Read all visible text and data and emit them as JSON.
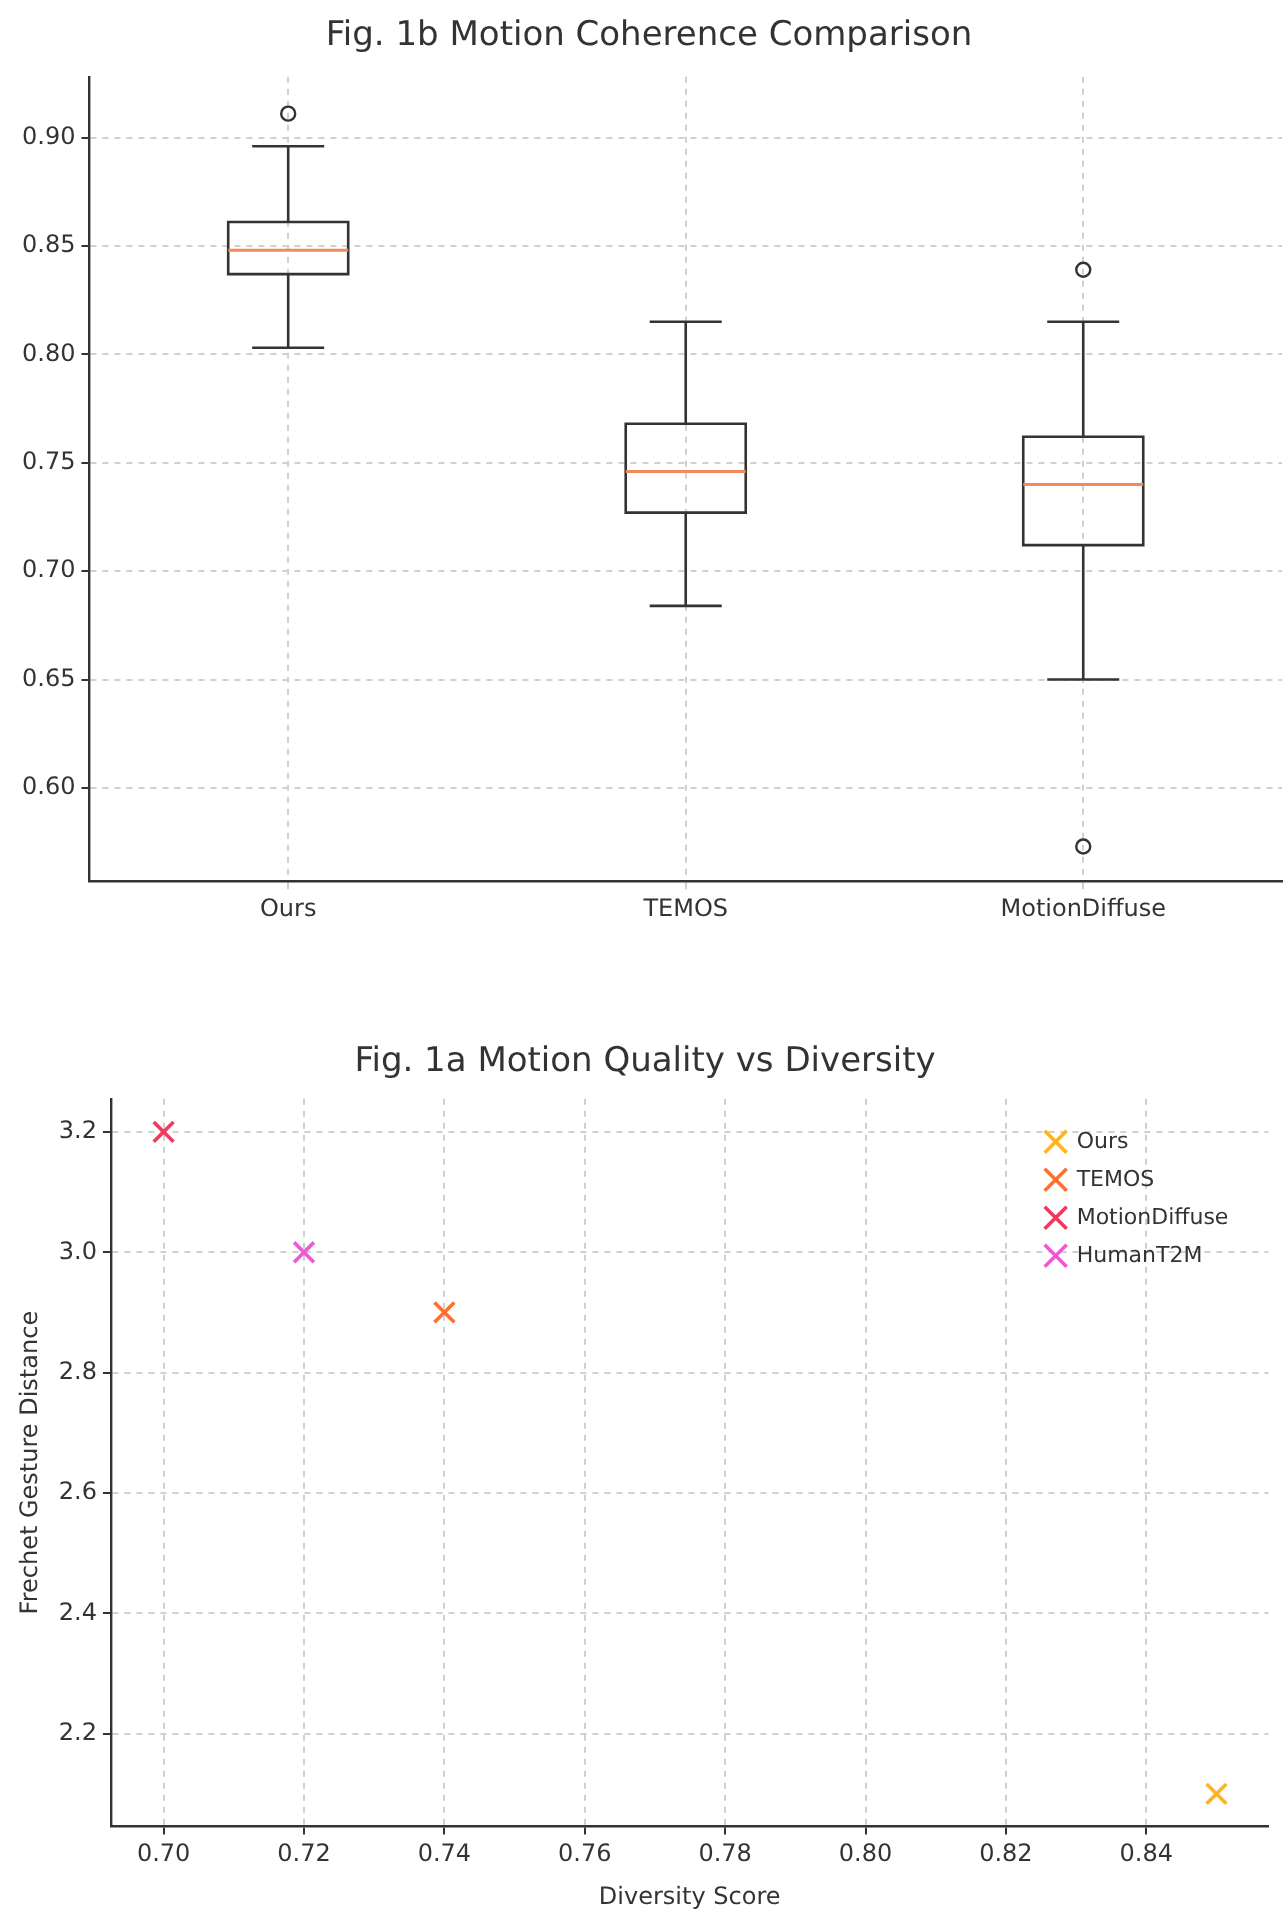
{
  "chart_data": [
    {
      "type": "box",
      "title": "Fig. 1b Motion Coherence Comparison",
      "categories": [
        "Ours",
        "TEMOS",
        "MotionDiffuse"
      ],
      "ylim": [
        0.557,
        0.928
      ],
      "yticks": [
        {
          "value": 0.6,
          "label": "0.60"
        },
        {
          "value": 0.65,
          "label": "0.65"
        },
        {
          "value": 0.7,
          "label": "0.70"
        },
        {
          "value": 0.75,
          "label": "0.75"
        },
        {
          "value": 0.8,
          "label": "0.80"
        },
        {
          "value": 0.85,
          "label": "0.85"
        },
        {
          "value": 0.9,
          "label": "0.90"
        }
      ],
      "grid": true,
      "boxes": [
        {
          "low": 0.803,
          "q1": 0.837,
          "median": 0.848,
          "q3": 0.861,
          "high": 0.896,
          "outliers": [
            0.911
          ]
        },
        {
          "low": 0.684,
          "q1": 0.727,
          "median": 0.746,
          "q3": 0.768,
          "high": 0.815
        },
        {
          "low": 0.65,
          "q1": 0.712,
          "median": 0.74,
          "q3": 0.762,
          "high": 0.815,
          "outliers": [
            0.839,
            0.573
          ]
        }
      ]
    },
    {
      "type": "scatter",
      "title": "Fig. 1a Motion Quality vs Diversity",
      "xlabel": "Diversity Score",
      "ylabel": "Frechet Gesture Distance",
      "xlim": [
        0.6925,
        0.8574
      ],
      "xticks": [
        {
          "value": 0.7,
          "label": "0.70"
        },
        {
          "value": 0.72,
          "label": "0.72"
        },
        {
          "value": 0.74,
          "label": "0.74"
        },
        {
          "value": 0.76,
          "label": "0.76"
        },
        {
          "value": 0.78,
          "label": "0.78"
        },
        {
          "value": 0.8,
          "label": "0.80"
        },
        {
          "value": 0.82,
          "label": "0.82"
        },
        {
          "value": 0.84,
          "label": "0.84"
        }
      ],
      "ylim": [
        2.046,
        3.255
      ],
      "yticks": [
        2.2,
        2.4,
        2.6,
        2.8,
        {
          "value": 3.0,
          "label": "3.0"
        },
        3.2
      ],
      "grid": true,
      "legend": "top right",
      "marker": "cross",
      "series": [
        {
          "name": "Ours",
          "color": "#ffb320",
          "x": [
            0.85
          ],
          "values": [
            2.1
          ]
        },
        {
          "name": "TEMOS",
          "color": "#fa7231",
          "x": [
            0.74
          ],
          "values": [
            2.9
          ]
        },
        {
          "name": "MotionDiffuse",
          "color": "#ee3a5e",
          "x": [
            0.7
          ],
          "values": [
            3.2
          ]
        },
        {
          "name": "HumanT2M",
          "color": "#ec5ad6",
          "x": [
            0.72
          ],
          "values": [
            3.0
          ]
        }
      ]
    }
  ]
}
